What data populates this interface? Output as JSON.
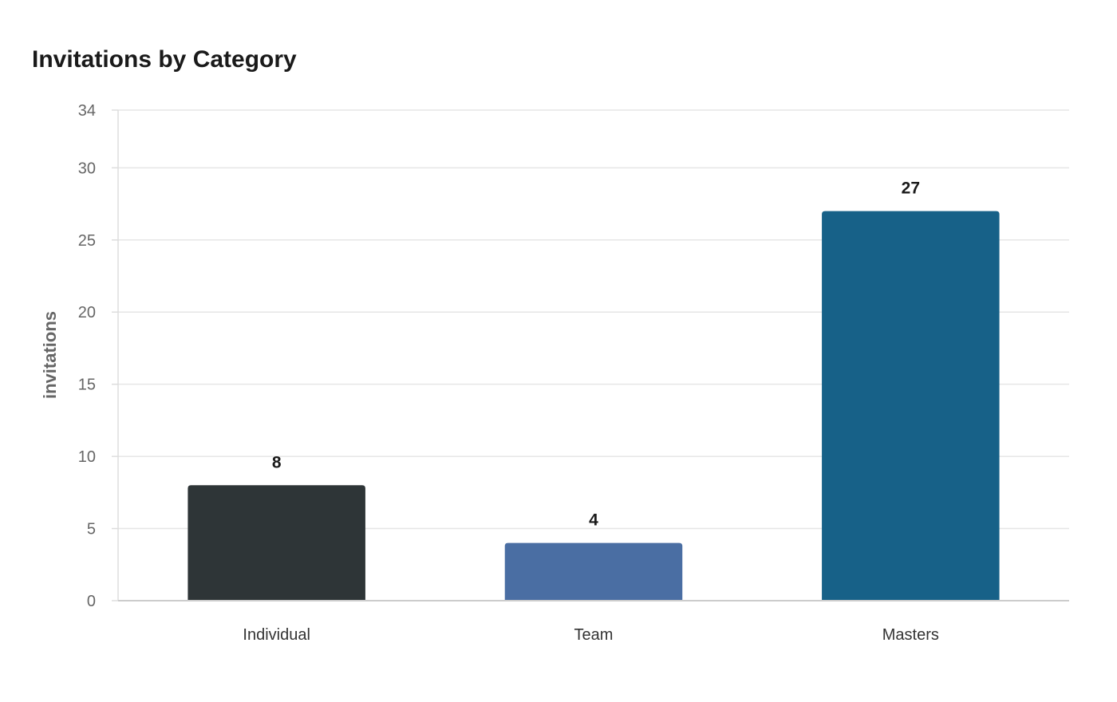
{
  "chart_data": {
    "type": "bar",
    "title": "Invitations by Category",
    "xlabel": "",
    "ylabel": "invitations",
    "categories": [
      "Individual",
      "Team",
      "Masters"
    ],
    "values": [
      8,
      4,
      27
    ],
    "colors": [
      "#2e3537",
      "#4a6ea3",
      "#176188"
    ],
    "ylim": [
      0,
      34
    ],
    "yticks": [
      0,
      5,
      10,
      15,
      20,
      25,
      30,
      34
    ],
    "grid": true,
    "legend": "none"
  }
}
